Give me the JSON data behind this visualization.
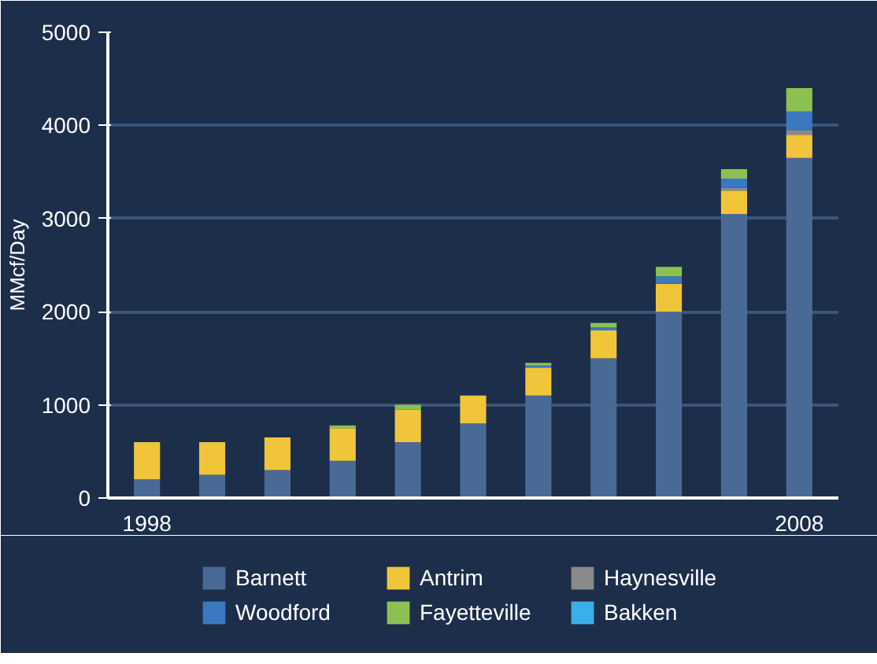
{
  "chart_data": {
    "type": "bar",
    "stacked": true,
    "ylabel": "MMcf/Day",
    "categories": [
      "1998",
      null,
      null,
      null,
      null,
      null,
      null,
      null,
      null,
      null,
      "2008"
    ],
    "series": [
      {
        "name": "Barnett",
        "color": "#4a6a96",
        "values": [
          200,
          250,
          300,
          400,
          600,
          800,
          1100,
          1500,
          2000,
          3050,
          3650
        ]
      },
      {
        "name": "Antrim",
        "color": "#f0c53a",
        "values": [
          400,
          350,
          350,
          350,
          350,
          300,
          300,
          300,
          300,
          250,
          250
        ]
      },
      {
        "name": "Haynesville",
        "color": "#8a8a8a",
        "values": [
          0,
          0,
          0,
          0,
          0,
          0,
          0,
          0,
          0,
          30,
          50
        ]
      },
      {
        "name": "Woodford",
        "color": "#3a78c0",
        "values": [
          0,
          0,
          0,
          0,
          0,
          0,
          20,
          30,
          80,
          100,
          200
        ]
      },
      {
        "name": "Fayetteville",
        "color": "#8cc152",
        "values": [
          0,
          0,
          0,
          30,
          50,
          0,
          30,
          50,
          100,
          100,
          250
        ]
      },
      {
        "name": "Bakken",
        "color": "#39b0e8",
        "values": [
          0,
          0,
          0,
          0,
          0,
          0,
          0,
          0,
          0,
          0,
          0
        ]
      }
    ],
    "ylim": [
      0,
      5000
    ],
    "yticks": [
      0,
      1000,
      2000,
      3000,
      4000,
      5000
    ],
    "grid": "y",
    "legend": "bottom"
  }
}
